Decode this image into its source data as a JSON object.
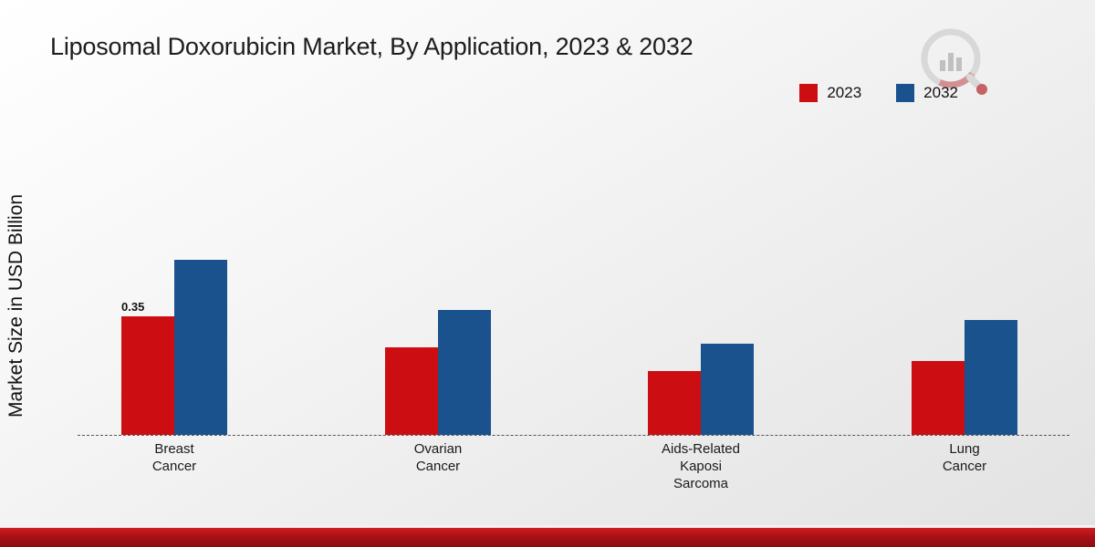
{
  "chart_data": {
    "type": "bar",
    "title": "Liposomal Doxorubicin Market, By Application, 2023 & 2032",
    "ylabel": "Market Size in USD Billion",
    "xlabel": "",
    "categories": [
      "Breast\nCancer",
      "Ovarian\nCancer",
      "Aids-Related\nKaposi\nSarcoma",
      "Lung\nCancer"
    ],
    "series": [
      {
        "name": "2023",
        "color": "#cc0d12",
        "values": [
          0.35,
          0.26,
          0.19,
          0.22
        ]
      },
      {
        "name": "2032",
        "color": "#1a528e",
        "values": [
          0.52,
          0.37,
          0.27,
          0.34
        ]
      }
    ],
    "annotations": [
      {
        "series": "2023",
        "category_index": 0,
        "text": "0.35"
      }
    ],
    "ylim": [
      0,
      0.6
    ],
    "grid": false,
    "legend_position": "top-right",
    "baseline_style": "dashed"
  },
  "branding": {
    "logo_icon": "bar-chart-magnifier-logo",
    "footer_color": "#a81115"
  }
}
